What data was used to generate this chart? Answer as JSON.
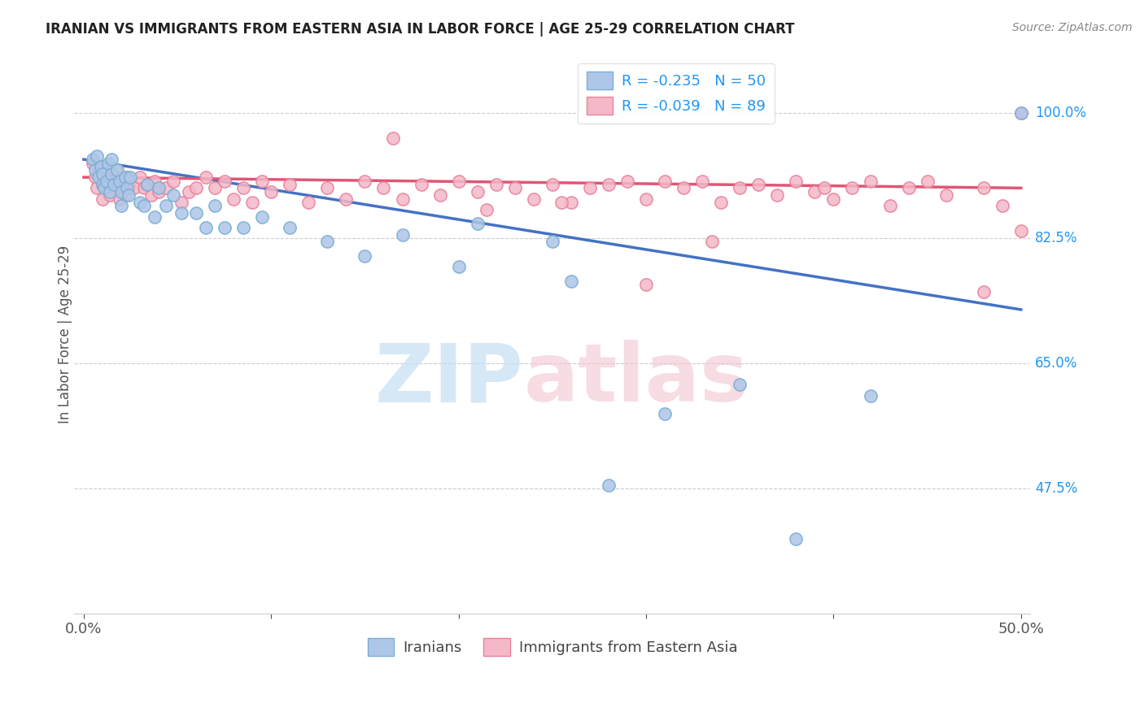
{
  "title": "IRANIAN VS IMMIGRANTS FROM EASTERN ASIA IN LABOR FORCE | AGE 25-29 CORRELATION CHART",
  "source": "Source: ZipAtlas.com",
  "ylabel": "In Labor Force | Age 25-29",
  "ytick_labels": [
    "47.5%",
    "65.0%",
    "82.5%",
    "100.0%"
  ],
  "ytick_values": [
    0.475,
    0.65,
    0.825,
    1.0
  ],
  "xlim": [
    -0.005,
    0.505
  ],
  "ylim": [
    0.3,
    1.08
  ],
  "blue_color": "#aec6e8",
  "blue_edge_color": "#7bafd4",
  "pink_color": "#f4b8c8",
  "pink_edge_color": "#e8839a",
  "blue_line_color": "#4472c4",
  "pink_line_color": "#e05575",
  "grid_color": "#cccccc",
  "title_color": "#222222",
  "ylabel_color": "#555555",
  "tick_label_color": "#555555",
  "right_label_color": "#2196F3",
  "source_color": "#888888",
  "blue_line_x0": 0.0,
  "blue_line_y0": 0.935,
  "blue_line_x1": 0.5,
  "blue_line_y1": 0.725,
  "pink_line_x0": 0.0,
  "pink_line_y0": 0.91,
  "pink_line_x1": 0.5,
  "pink_line_y1": 0.895,
  "blue_x": [
    0.005,
    0.006,
    0.007,
    0.008,
    0.009,
    0.01,
    0.01,
    0.011,
    0.012,
    0.013,
    0.014,
    0.015,
    0.015,
    0.016,
    0.018,
    0.019,
    0.02,
    0.02,
    0.022,
    0.023,
    0.024,
    0.025,
    0.03,
    0.032,
    0.034,
    0.038,
    0.04,
    0.044,
    0.048,
    0.052,
    0.06,
    0.065,
    0.07,
    0.075,
    0.085,
    0.095,
    0.11,
    0.13,
    0.15,
    0.17,
    0.2,
    0.21,
    0.25,
    0.26,
    0.28,
    0.31,
    0.35,
    0.38,
    0.42,
    0.5
  ],
  "blue_y": [
    0.935,
    0.92,
    0.94,
    0.91,
    0.925,
    0.9,
    0.915,
    0.895,
    0.905,
    0.93,
    0.89,
    0.915,
    0.935,
    0.9,
    0.92,
    0.905,
    0.89,
    0.87,
    0.91,
    0.895,
    0.885,
    0.91,
    0.875,
    0.87,
    0.9,
    0.855,
    0.895,
    0.87,
    0.885,
    0.86,
    0.86,
    0.84,
    0.87,
    0.84,
    0.84,
    0.855,
    0.84,
    0.82,
    0.8,
    0.83,
    0.785,
    0.845,
    0.82,
    0.765,
    0.48,
    0.58,
    0.62,
    0.405,
    0.605,
    1.0
  ],
  "pink_x": [
    0.005,
    0.006,
    0.007,
    0.008,
    0.009,
    0.01,
    0.01,
    0.011,
    0.012,
    0.013,
    0.014,
    0.015,
    0.016,
    0.017,
    0.018,
    0.019,
    0.02,
    0.021,
    0.022,
    0.023,
    0.024,
    0.025,
    0.027,
    0.03,
    0.032,
    0.034,
    0.036,
    0.038,
    0.04,
    0.044,
    0.048,
    0.052,
    0.056,
    0.06,
    0.065,
    0.07,
    0.075,
    0.08,
    0.085,
    0.09,
    0.095,
    0.1,
    0.11,
    0.12,
    0.13,
    0.14,
    0.15,
    0.16,
    0.17,
    0.18,
    0.19,
    0.2,
    0.21,
    0.22,
    0.23,
    0.24,
    0.25,
    0.26,
    0.27,
    0.28,
    0.29,
    0.3,
    0.31,
    0.32,
    0.33,
    0.34,
    0.35,
    0.36,
    0.37,
    0.38,
    0.39,
    0.4,
    0.41,
    0.42,
    0.43,
    0.44,
    0.45,
    0.46,
    0.48,
    0.49,
    0.5,
    0.5,
    0.48,
    0.395,
    0.335,
    0.3,
    0.255,
    0.215,
    0.165
  ],
  "pink_y": [
    0.93,
    0.91,
    0.895,
    0.915,
    0.925,
    0.9,
    0.88,
    0.905,
    0.895,
    0.92,
    0.885,
    0.905,
    0.895,
    0.92,
    0.9,
    0.88,
    0.905,
    0.895,
    0.885,
    0.91,
    0.895,
    0.905,
    0.895,
    0.91,
    0.895,
    0.9,
    0.885,
    0.905,
    0.89,
    0.895,
    0.905,
    0.875,
    0.89,
    0.895,
    0.91,
    0.895,
    0.905,
    0.88,
    0.895,
    0.875,
    0.905,
    0.89,
    0.9,
    0.875,
    0.895,
    0.88,
    0.905,
    0.895,
    0.88,
    0.9,
    0.885,
    0.905,
    0.89,
    0.9,
    0.895,
    0.88,
    0.9,
    0.875,
    0.895,
    0.9,
    0.905,
    0.88,
    0.905,
    0.895,
    0.905,
    0.875,
    0.895,
    0.9,
    0.885,
    0.905,
    0.89,
    0.88,
    0.895,
    0.905,
    0.87,
    0.895,
    0.905,
    0.885,
    0.895,
    0.87,
    1.0,
    0.835,
    0.75,
    0.895,
    0.82,
    0.76,
    0.875,
    0.865,
    0.965
  ]
}
